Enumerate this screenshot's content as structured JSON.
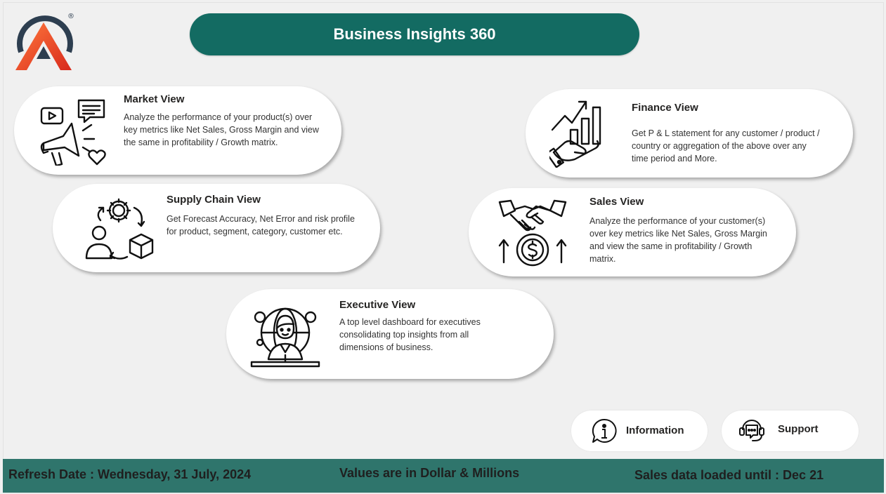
{
  "header": {
    "title": "Business Insights 360",
    "logo_mark": "®"
  },
  "cards": {
    "market": {
      "title": "Market View",
      "description": "Analyze the performance of your product(s) over key metrics like Net Sales, Gross Margin and view the same in profitability / Growth matrix.",
      "icon": "marketing-megaphone-icon"
    },
    "supply_chain": {
      "title": "Supply Chain View",
      "description": "Get Forecast Accuracy, Net Error and risk profile for product, segment, category, customer etc.",
      "icon": "supply-chain-icon"
    },
    "executive": {
      "title": "Executive View",
      "description": "A top level dashboard for executives consolidating top insights from all dimensions of business.",
      "icon": "executive-globe-icon"
    },
    "finance": {
      "title": "Finance View",
      "description": "Get  P & L statement for any customer / product / country or aggregation of the above over any time period and More.",
      "icon": "finance-growth-icon"
    },
    "sales": {
      "title": "Sales View",
      "description": "Analyze the performance of your customer(s) over key metrics like Net Sales, Gross Margin and view the same in profitability / Growth matrix.",
      "icon": "handshake-dollar-icon"
    }
  },
  "buttons": {
    "information": "Information",
    "support": "Support"
  },
  "footer": {
    "refresh": "Refresh Date : Wednesday, 31 July, 2024",
    "values_note": "Values are in Dollar & Millions",
    "sales_loaded": "Sales data loaded until : Dec 21"
  },
  "colors": {
    "primary_teal": "#136b62",
    "footer_teal": "#2f756c",
    "logo_orange": "#f05a28",
    "logo_dark": "#2d3e50",
    "background": "#f0f0f0"
  }
}
